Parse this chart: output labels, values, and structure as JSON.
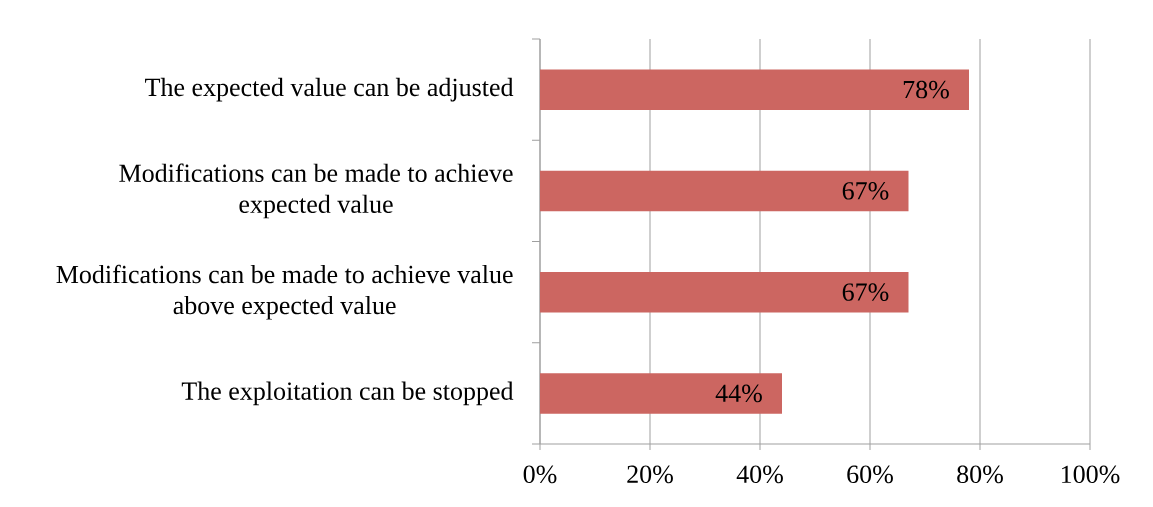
{
  "chart_data": {
    "type": "bar",
    "orientation": "horizontal",
    "categories": [
      "The expected value can be adjusted",
      "Modifications can be made to achieve expected value",
      "Modifications can be made to achieve value above expected value",
      "The exploitation can be stopped"
    ],
    "values": [
      78,
      67,
      67,
      44
    ],
    "color": "#cc6661",
    "value_labels": [
      "78%",
      "67%",
      "67%",
      "44%"
    ],
    "xlim": [
      0,
      100
    ],
    "xticks": [
      {
        "value": 0,
        "label": "0%"
      },
      {
        "value": 20,
        "label": "20%"
      },
      {
        "value": 40,
        "label": "40%"
      },
      {
        "value": 60,
        "label": "60%"
      },
      {
        "value": 80,
        "label": "80%"
      },
      {
        "value": 100,
        "label": "100%"
      }
    ],
    "grid": "x"
  }
}
